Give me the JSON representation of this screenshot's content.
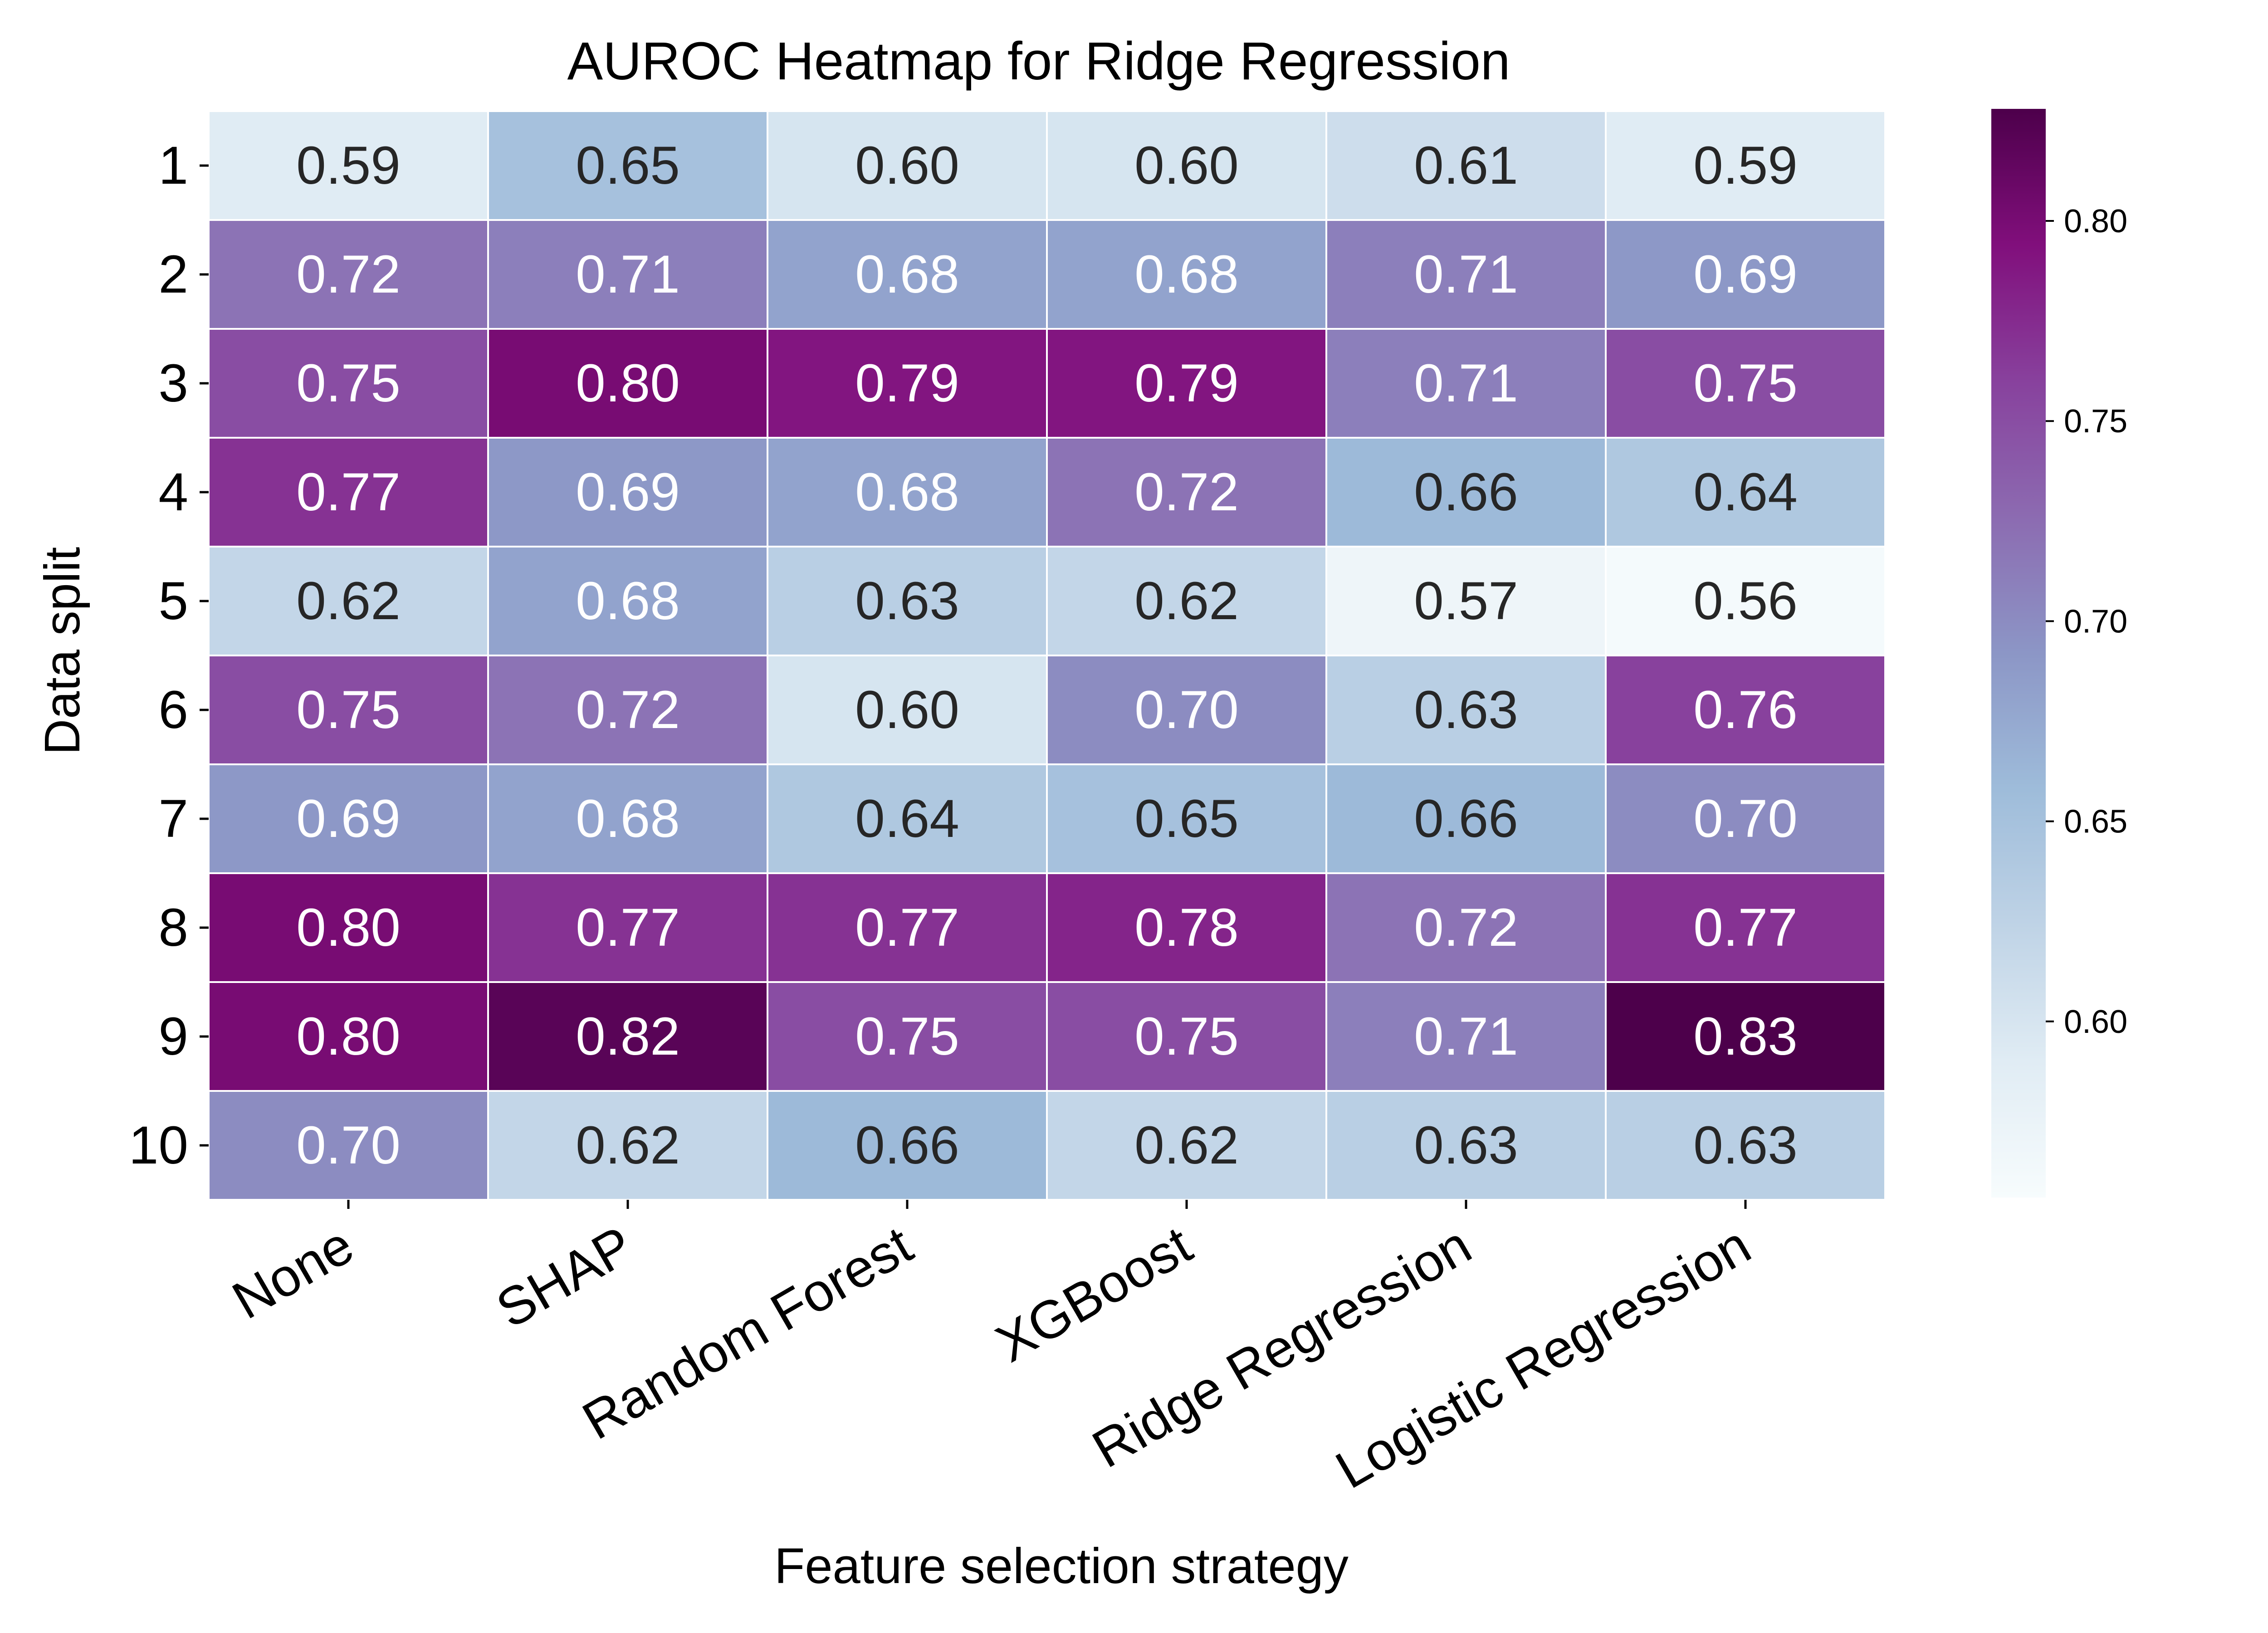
{
  "chart_data": {
    "type": "heatmap",
    "title": "AUROC Heatmap for Ridge Regression",
    "xlabel": "Feature selection strategy",
    "ylabel": "Data split",
    "x_categories": [
      "None",
      "SHAP",
      "Random Forest",
      "XGBoost",
      "Ridge Regression",
      "Logistic Regression"
    ],
    "y_categories": [
      "1",
      "2",
      "3",
      "4",
      "5",
      "6",
      "7",
      "8",
      "9",
      "10"
    ],
    "values": [
      [
        0.59,
        0.65,
        0.6,
        0.6,
        0.61,
        0.59
      ],
      [
        0.72,
        0.71,
        0.68,
        0.68,
        0.71,
        0.69
      ],
      [
        0.75,
        0.8,
        0.79,
        0.79,
        0.71,
        0.75
      ],
      [
        0.77,
        0.69,
        0.68,
        0.72,
        0.66,
        0.64
      ],
      [
        0.62,
        0.68,
        0.63,
        0.62,
        0.57,
        0.56
      ],
      [
        0.75,
        0.72,
        0.6,
        0.7,
        0.63,
        0.76
      ],
      [
        0.69,
        0.68,
        0.64,
        0.65,
        0.66,
        0.7
      ],
      [
        0.8,
        0.77,
        0.77,
        0.78,
        0.72,
        0.77
      ],
      [
        0.8,
        0.82,
        0.75,
        0.75,
        0.71,
        0.83
      ],
      [
        0.7,
        0.62,
        0.66,
        0.62,
        0.63,
        0.63
      ]
    ],
    "value_labels": [
      [
        "0.59",
        "0.65",
        "0.60",
        "0.60",
        "0.61",
        "0.59"
      ],
      [
        "0.72",
        "0.71",
        "0.68",
        "0.68",
        "0.71",
        "0.69"
      ],
      [
        "0.75",
        "0.80",
        "0.79",
        "0.79",
        "0.71",
        "0.75"
      ],
      [
        "0.77",
        "0.69",
        "0.68",
        "0.72",
        "0.66",
        "0.64"
      ],
      [
        "0.62",
        "0.68",
        "0.63",
        "0.62",
        "0.57",
        "0.56"
      ],
      [
        "0.75",
        "0.72",
        "0.60",
        "0.70",
        "0.63",
        "0.76"
      ],
      [
        "0.69",
        "0.68",
        "0.64",
        "0.65",
        "0.66",
        "0.70"
      ],
      [
        "0.80",
        "0.77",
        "0.77",
        "0.78",
        "0.72",
        "0.77"
      ],
      [
        "0.80",
        "0.82",
        "0.75",
        "0.75",
        "0.71",
        "0.83"
      ],
      [
        "0.70",
        "0.62",
        "0.66",
        "0.62",
        "0.63",
        "0.63"
      ]
    ],
    "colormap": "BuPu",
    "colormap_stops": [
      "#f7fcfd",
      "#e0ecf4",
      "#bfd3e6",
      "#9ebcda",
      "#8c96c6",
      "#8c6bb1",
      "#88419d",
      "#810f7c",
      "#4d004b"
    ],
    "vmin": 0.556,
    "vmax": 0.828,
    "colorbar_ticks": [
      0.6,
      0.65,
      0.7,
      0.75,
      0.8
    ],
    "colorbar_tick_labels": [
      "0.60",
      "0.65",
      "0.70",
      "0.75",
      "0.80"
    ],
    "text_color_dark": "#262626",
    "text_color_light": "#ffffff",
    "cell_border_color": "#ffffff"
  }
}
